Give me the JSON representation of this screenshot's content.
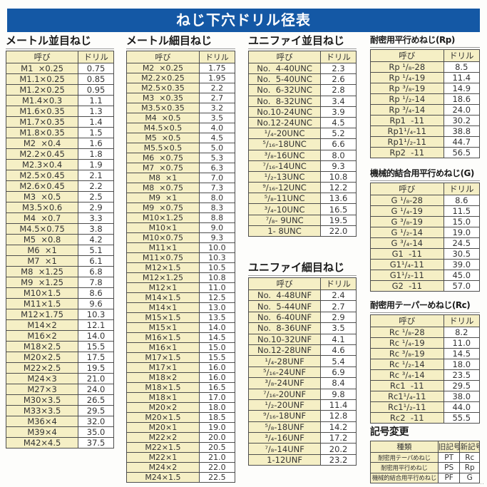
{
  "title": "ねじ下穴ドリル径表",
  "table_headers": {
    "name": "呼び",
    "drill": "ドリル"
  },
  "colors": {
    "title_bar_blue": "#1458a5",
    "cell_cream": "#f5efc5",
    "cell_white": "#ffffff",
    "border_gray": "#4d4d4d"
  },
  "footer_mark": "‥",
  "sections": {
    "metric_coarse": {
      "title": "メートル並目ねじ",
      "rows": [
        [
          "M1  ×0.25",
          "0.75"
        ],
        [
          "M1.1×0.25",
          "0.85"
        ],
        [
          "M1.2×0.25",
          "0.95"
        ],
        [
          "M1.4×0.3",
          "1.1"
        ],
        [
          "M1.6×0.35",
          "1.3"
        ],
        [
          "M1.7×0.35",
          "1.4"
        ],
        [
          "M1.8×0.35",
          "1.5"
        ],
        [
          "M2  ×0.4",
          "1.6"
        ],
        [
          "M2.2×0.45",
          "1.8"
        ],
        [
          "M2.3×0.4",
          "1.9"
        ],
        [
          "M2.5×0.45",
          "2.1"
        ],
        [
          "M2.6×0.45",
          "2.2"
        ],
        [
          "M3  ×0.5",
          "2.5"
        ],
        [
          "M3.5×0.6",
          "2.9"
        ],
        [
          "M4  ×0.7",
          "3.3"
        ],
        [
          "M4.5×0.75",
          "3.8"
        ],
        [
          "M5  ×0.8",
          "4.2"
        ],
        [
          "M6  ×1",
          "5.1"
        ],
        [
          "M7  ×1",
          "6.1"
        ],
        [
          "M8  ×1.25",
          "6.8"
        ],
        [
          "M9  ×1.25",
          "7.8"
        ],
        [
          "M10×1.5",
          "8.6"
        ],
        [
          "M11×1.5",
          "9.6"
        ],
        [
          "M12×1.75",
          "10.3"
        ],
        [
          "M14×2",
          "12.1"
        ],
        [
          "M16×2",
          "14.0"
        ],
        [
          "M18×2.5",
          "15.5"
        ],
        [
          "M20×2.5",
          "17.5"
        ],
        [
          "M22×2.5",
          "19.5"
        ],
        [
          "M24×3",
          "21.0"
        ],
        [
          "M27×3",
          "24.0"
        ],
        [
          "M30×3.5",
          "26.5"
        ],
        [
          "M33×3.5",
          "29.5"
        ],
        [
          "M36×4",
          "32.0"
        ],
        [
          "M39×4",
          "35.0"
        ],
        [
          "M42×4.5",
          "37.5"
        ]
      ]
    },
    "metric_fine": {
      "title": "メートル細目ねじ",
      "rows": [
        [
          "M2  ×0.25",
          "1.75"
        ],
        [
          "M2.2×0.25",
          "1.95"
        ],
        [
          "M2.5×0.35",
          "2.2"
        ],
        [
          "M3  ×0.35",
          "2.7"
        ],
        [
          "M3.5×0.35",
          "3.2"
        ],
        [
          "M4  ×0.5",
          "3.5"
        ],
        [
          "M4.5×0.5",
          "4.0"
        ],
        [
          "M5  ×0.5",
          "4.5"
        ],
        [
          "M5.5×0.5",
          "5.0"
        ],
        [
          "M6  ×0.75",
          "5.3"
        ],
        [
          "M7  ×0.75",
          "6.3"
        ],
        [
          "M8  ×1",
          "7.0"
        ],
        [
          "M8  ×0.75",
          "7.3"
        ],
        [
          "M9  ×1",
          "8.0"
        ],
        [
          "M9  ×0.75",
          "8.3"
        ],
        [
          "M10×1.25",
          "8.8"
        ],
        [
          "M10×1",
          "9.0"
        ],
        [
          "M10×0.75",
          "9.3"
        ],
        [
          "M11×1",
          "10.0"
        ],
        [
          "M11×0.75",
          "10.3"
        ],
        [
          "M12×1.5",
          "10.5"
        ],
        [
          "M12×1.25",
          "10.8"
        ],
        [
          "M12×1",
          "11.0"
        ],
        [
          "M14×1.5",
          "12.5"
        ],
        [
          "M14×1",
          "13.0"
        ],
        [
          "M15×1.5",
          "13.5"
        ],
        [
          "M15×1",
          "14.0"
        ],
        [
          "M16×1.5",
          "14.5"
        ],
        [
          "M16×1",
          "15.0"
        ],
        [
          "M17×1.5",
          "15.5"
        ],
        [
          "M17×1",
          "16.0"
        ],
        [
          "M18×2",
          "16.0"
        ],
        [
          "M18×1.5",
          "16.5"
        ],
        [
          "M18×1",
          "17.0"
        ],
        [
          "M20×2",
          "18.0"
        ],
        [
          "M20×1.5",
          "18.5"
        ],
        [
          "M20×1",
          "19.0"
        ],
        [
          "M22×2",
          "20.0"
        ],
        [
          "M22×1.5",
          "20.5"
        ],
        [
          "M22×1",
          "21.0"
        ],
        [
          "M24×2",
          "22.0"
        ],
        [
          "M24×1.5",
          "22.5"
        ]
      ]
    },
    "unified_coarse": {
      "title": "ユニファイ並目ねじ",
      "rows": [
        [
          "No.  4-40UNC",
          "2.3"
        ],
        [
          "No.  5-40UNC",
          "2.6"
        ],
        [
          "No.  6-32UNC",
          "2.8"
        ],
        [
          "No.  8-32UNC",
          "3.4"
        ],
        [
          "No.10-24UNC",
          "3.9"
        ],
        [
          "No.12-24UNC",
          "4.5"
        ],
        [
          "¹/₄-20UNC",
          "5.2"
        ],
        [
          "⁵/₁₆-18UNC",
          "6.6"
        ],
        [
          "³/₈-16UNC",
          "8.0"
        ],
        [
          "⁷/₁₆-14UNC",
          "9.3"
        ],
        [
          "¹/₂-13UNC",
          "10.8"
        ],
        [
          "⁹/₁₆-12UNC",
          "12.2"
        ],
        [
          "⁵/₈-11UNC",
          "13.6"
        ],
        [
          "³/₄-10UNC",
          "16.5"
        ],
        [
          "⁷/₈- 9UNC",
          "19.5"
        ],
        [
          "1- 8UNC",
          "22.0"
        ]
      ]
    },
    "unified_fine": {
      "title": "ユニファイ細目ねじ",
      "rows": [
        [
          "No.  4-48UNF",
          "2.4"
        ],
        [
          "No.  5-44UNF",
          "2.7"
        ],
        [
          "No.  6-40UNF",
          "2.9"
        ],
        [
          "No.  8-36UNF",
          "3.5"
        ],
        [
          "No.10-32UNF",
          "4.1"
        ],
        [
          "No.12-28UNF",
          "4.6"
        ],
        [
          "¹/₄-28UNF",
          "5.4"
        ],
        [
          "⁵/₁₆-24UNF",
          "6.9"
        ],
        [
          "³/₈-24UNF",
          "8.4"
        ],
        [
          "⁷/₁₆-20UNF",
          "9.8"
        ],
        [
          "¹/₂-20UNF",
          "11.4"
        ],
        [
          "⁹/₁₆-18UNF",
          "12.8"
        ],
        [
          "⁵/₈-18UNF",
          "14.2"
        ],
        [
          "³/₄-16UNF",
          "17.2"
        ],
        [
          "⁷/₈-14UNF",
          "20.2"
        ],
        [
          "1-12UNF",
          "23.2"
        ]
      ]
    },
    "rp": {
      "title": "耐密用平行めねじ(Rp)",
      "rows": [
        [
          "Rp ¹/₈-28",
          "8.5"
        ],
        [
          "Rp ¹/₄-19",
          "11.4"
        ],
        [
          "Rp ³/₈-19",
          "14.9"
        ],
        [
          "Rp ¹/₂-14",
          "18.6"
        ],
        [
          "Rp ³/₄-14",
          "24.0"
        ],
        [
          "Rp1  -11",
          "30.2"
        ],
        [
          "Rp1¹/₄-11",
          "38.8"
        ],
        [
          "Rp1¹/₂-11",
          "44.7"
        ],
        [
          "Rp2  -11",
          "56.5"
        ]
      ]
    },
    "g": {
      "title": "機械的結合用平行めねじ(G)",
      "rows": [
        [
          "G ¹/₈-28",
          "8.6"
        ],
        [
          "G ¹/₄-19",
          "11.5"
        ],
        [
          "G ³/₈-19",
          "15.0"
        ],
        [
          "G ¹/₂-14",
          "19.0"
        ],
        [
          "G ³/₄-14",
          "24.5"
        ],
        [
          "G1  -11",
          "30.5"
        ],
        [
          "G1¹/₄-11",
          "39.0"
        ],
        [
          "G1¹/₂-11",
          "45.0"
        ],
        [
          "G2  -11",
          "57.0"
        ]
      ]
    },
    "rc": {
      "title": "耐密用テーパーめねじ(Rc)",
      "rows": [
        [
          "Rc ¹/₈-28",
          "8.2"
        ],
        [
          "Rc ¹/₄-19",
          "11.0"
        ],
        [
          "Rc ³/₈-19",
          "14.5"
        ],
        [
          "Rc ¹/₂-14",
          "18.0"
        ],
        [
          "Rc ³/₄-14",
          "23.5"
        ],
        [
          "Rc1  -11",
          "29.5"
        ],
        [
          "Rc1¹/₄-11",
          "38.0"
        ],
        [
          "Rc1¹/₂-11",
          "44.0"
        ],
        [
          "Rc2  -11",
          "55.5"
        ]
      ]
    },
    "symbol_change": {
      "title": "記号変更",
      "headers": [
        "種類",
        "旧記号",
        "新記号"
      ],
      "rows": [
        [
          "耐密用テーパめねじ",
          "PT",
          "Rc"
        ],
        [
          "耐密用平行めねじ",
          "PS",
          "Rp"
        ],
        [
          "機械的結合用平行めねじ",
          "PF",
          "G"
        ]
      ]
    }
  }
}
